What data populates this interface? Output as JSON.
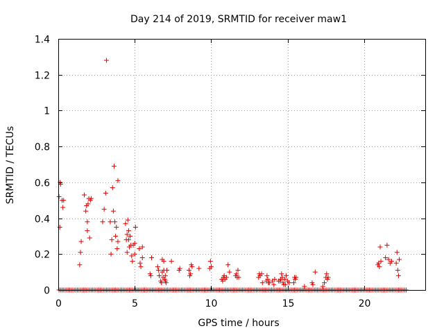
{
  "chart_data": {
    "type": "scatter",
    "title": "Day 214 of 2019, SRMTID for receiver maw1",
    "xlabel": "GPS time / hours",
    "ylabel": "SRMTID / TECUs",
    "xlim": [
      0,
      24
    ],
    "ylim": [
      0,
      1.4
    ],
    "xticks": [
      0,
      5,
      10,
      15,
      20
    ],
    "xtick_labels": [
      "0",
      "5",
      "10",
      "15",
      "20"
    ],
    "yticks": [
      0,
      0.2,
      0.4,
      0.6,
      0.8,
      1.0,
      1.2,
      1.4
    ],
    "ytick_labels": [
      "0",
      "0.2",
      "0.4",
      "0.6",
      "0.8",
      "1",
      "1.2",
      "1.4"
    ],
    "grid": true,
    "marker": "+",
    "color": "#e00000",
    "zero_baseline": {
      "x_start": 0.05,
      "x_end": 22.8,
      "step": 0.1,
      "y": 0
    },
    "series": [
      {
        "name": "SRMTID",
        "points": [
          [
            0.05,
            0.52
          ],
          [
            0.1,
            0.35
          ],
          [
            0.12,
            0.6
          ],
          [
            0.15,
            0.59
          ],
          [
            0.25,
            0.5
          ],
          [
            0.3,
            0.46
          ],
          [
            0.35,
            0.5
          ],
          [
            1.4,
            0.14
          ],
          [
            1.45,
            0.21
          ],
          [
            1.5,
            0.27
          ],
          [
            1.7,
            0.53
          ],
          [
            1.8,
            0.44
          ],
          [
            1.85,
            0.47
          ],
          [
            1.9,
            0.38
          ],
          [
            1.9,
            0.33
          ],
          [
            1.95,
            0.48
          ],
          [
            2.0,
            0.51
          ],
          [
            2.05,
            0.29
          ],
          [
            2.1,
            0.5
          ],
          [
            2.15,
            0.51
          ],
          [
            2.9,
            0.38
          ],
          [
            3.0,
            0.45
          ],
          [
            3.1,
            0.54
          ],
          [
            3.15,
            1.28
          ],
          [
            3.4,
            0.38
          ],
          [
            3.45,
            0.2
          ],
          [
            3.5,
            0.28
          ],
          [
            3.55,
            0.57
          ],
          [
            3.6,
            0.44
          ],
          [
            3.65,
            0.69
          ],
          [
            3.7,
            0.38
          ],
          [
            3.75,
            0.3
          ],
          [
            3.8,
            0.35
          ],
          [
            3.85,
            0.23
          ],
          [
            3.9,
            0.27
          ],
          [
            3.9,
            0.61
          ],
          [
            4.4,
            0.37
          ],
          [
            4.45,
            0.28
          ],
          [
            4.5,
            0.31
          ],
          [
            4.5,
            0.21
          ],
          [
            4.55,
            0.39
          ],
          [
            4.6,
            0.33
          ],
          [
            4.6,
            0.28
          ],
          [
            4.65,
            0.24
          ],
          [
            4.7,
            0.3
          ],
          [
            4.75,
            0.25
          ],
          [
            4.8,
            0.19
          ],
          [
            4.85,
            0.16
          ],
          [
            4.9,
            0.25
          ],
          [
            5.0,
            0.26
          ],
          [
            5.05,
            0.35
          ],
          [
            5.0,
            0.2
          ],
          [
            5.3,
            0.23
          ],
          [
            5.35,
            0.15
          ],
          [
            5.4,
            0.13
          ],
          [
            5.5,
            0.24
          ],
          [
            5.5,
            0.18
          ],
          [
            6.0,
            0.09
          ],
          [
            6.05,
            0.08
          ],
          [
            6.1,
            0.18
          ],
          [
            6.5,
            0.13
          ],
          [
            6.55,
            0.11
          ],
          [
            6.6,
            0.08
          ],
          [
            6.7,
            0.05
          ],
          [
            6.75,
            0.04
          ],
          [
            6.8,
            0.1
          ],
          [
            6.8,
            0.17
          ],
          [
            6.85,
            0.07
          ],
          [
            6.9,
            0.16
          ],
          [
            6.9,
            0.11
          ],
          [
            6.95,
            0.06
          ],
          [
            7.0,
            0.08
          ],
          [
            7.0,
            0.05
          ],
          [
            7.05,
            0.04
          ],
          [
            7.1,
            0.11
          ],
          [
            7.4,
            0.16
          ],
          [
            7.9,
            0.11
          ],
          [
            7.95,
            0.12
          ],
          [
            8.55,
            0.11
          ],
          [
            8.6,
            0.08
          ],
          [
            8.65,
            0.09
          ],
          [
            8.7,
            0.14
          ],
          [
            8.75,
            0.13
          ],
          [
            9.2,
            0.12
          ],
          [
            9.9,
            0.12
          ],
          [
            9.95,
            0.16
          ],
          [
            10.0,
            0.13
          ],
          [
            10.7,
            0.06
          ],
          [
            10.75,
            0.05
          ],
          [
            10.8,
            0.07
          ],
          [
            10.85,
            0.08
          ],
          [
            10.9,
            0.06
          ],
          [
            11.0,
            0.07
          ],
          [
            11.1,
            0.14
          ],
          [
            11.2,
            0.1
          ],
          [
            11.6,
            0.08
          ],
          [
            11.65,
            0.09
          ],
          [
            11.7,
            0.07
          ],
          [
            11.75,
            0.11
          ],
          [
            11.8,
            0.07
          ],
          [
            13.1,
            0.07
          ],
          [
            13.15,
            0.09
          ],
          [
            13.2,
            0.08
          ],
          [
            13.3,
            0.09
          ],
          [
            13.35,
            0.04
          ],
          [
            13.6,
            0.05
          ],
          [
            13.65,
            0.08
          ],
          [
            13.7,
            0.06
          ],
          [
            13.75,
            0.04
          ],
          [
            13.8,
            0.04
          ],
          [
            14.0,
            0.05
          ],
          [
            14.1,
            0.03
          ],
          [
            14.15,
            0.06
          ],
          [
            14.4,
            0.05
          ],
          [
            14.5,
            0.05
          ],
          [
            14.55,
            0.06
          ],
          [
            14.6,
            0.09
          ],
          [
            14.65,
            0.07
          ],
          [
            14.7,
            0.04
          ],
          [
            14.75,
            0.03
          ],
          [
            14.8,
            0.06
          ],
          [
            14.85,
            0.03
          ],
          [
            14.9,
            0.08
          ],
          [
            15.0,
            0.05
          ],
          [
            15.1,
            0.04
          ],
          [
            15.4,
            0.04
          ],
          [
            15.45,
            0.07
          ],
          [
            15.5,
            0.06
          ],
          [
            15.55,
            0.07
          ],
          [
            16.1,
            0.02
          ],
          [
            16.6,
            0.04
          ],
          [
            16.65,
            0.03
          ],
          [
            16.8,
            0.1
          ],
          [
            17.3,
            0.02
          ],
          [
            17.4,
            0.04
          ],
          [
            17.5,
            0.07
          ],
          [
            17.55,
            0.09
          ],
          [
            17.6,
            0.06
          ],
          [
            17.65,
            0.07
          ],
          [
            20.9,
            0.14
          ],
          [
            20.95,
            0.15
          ],
          [
            21.0,
            0.13
          ],
          [
            21.05,
            0.24
          ],
          [
            21.1,
            0.16
          ],
          [
            21.4,
            0.18
          ],
          [
            21.5,
            0.25
          ],
          [
            21.6,
            0.17
          ],
          [
            21.7,
            0.15
          ],
          [
            21.8,
            0.16
          ],
          [
            22.1,
            0.15
          ],
          [
            22.15,
            0.21
          ],
          [
            22.2,
            0.11
          ],
          [
            22.25,
            0.08
          ],
          [
            22.3,
            0.17
          ]
        ]
      }
    ]
  }
}
